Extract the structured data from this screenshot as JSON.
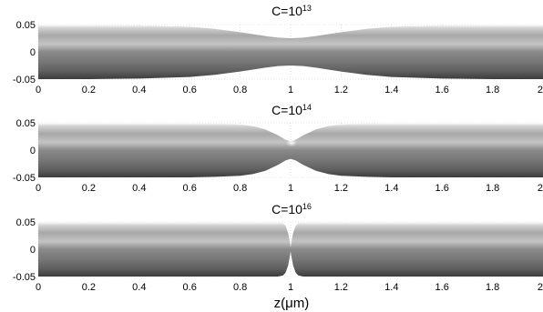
{
  "chart_data": [
    {
      "type": "area",
      "title": {
        "base": "C=10",
        "exponent": "13"
      },
      "x_range": [
        0,
        2
      ],
      "y_range": [
        -0.05,
        0.05
      ],
      "x_ticks": [
        "0",
        "0.2",
        "0.4",
        "0.6",
        "0.8",
        "1",
        "1.2",
        "1.4",
        "1.6",
        "1.8",
        "2"
      ],
      "y_ticks": [
        "0.05",
        "0",
        "-0.05"
      ],
      "radius_profile": {
        "z": [
          0,
          0.2,
          0.4,
          0.6,
          0.7,
          0.8,
          0.9,
          0.95,
          1.0,
          1.05,
          1.1,
          1.2,
          1.3,
          1.4,
          1.6,
          1.8,
          2.0
        ],
        "r": [
          0.05,
          0.05,
          0.049,
          0.046,
          0.042,
          0.036,
          0.029,
          0.026,
          0.025,
          0.026,
          0.029,
          0.036,
          0.042,
          0.046,
          0.049,
          0.05,
          0.05
        ]
      },
      "grid": true
    },
    {
      "type": "area",
      "title": {
        "base": "C=10",
        "exponent": "14"
      },
      "x_range": [
        0,
        2
      ],
      "y_range": [
        -0.05,
        0.05
      ],
      "x_ticks": [
        "0",
        "0.2",
        "0.4",
        "0.6",
        "0.8",
        "1",
        "1.2",
        "1.4",
        "1.6",
        "1.8",
        "2"
      ],
      "y_ticks": [
        "0.05",
        "0",
        "-0.05"
      ],
      "radius_profile": {
        "z": [
          0,
          0.2,
          0.4,
          0.6,
          0.7,
          0.8,
          0.85,
          0.9,
          0.95,
          0.98,
          1.0,
          1.02,
          1.05,
          1.1,
          1.15,
          1.2,
          1.3,
          1.4,
          1.6,
          1.8,
          2.0
        ],
        "r": [
          0.05,
          0.05,
          0.05,
          0.05,
          0.049,
          0.047,
          0.044,
          0.038,
          0.027,
          0.019,
          0.016,
          0.019,
          0.027,
          0.038,
          0.044,
          0.047,
          0.049,
          0.05,
          0.05,
          0.05,
          0.05
        ]
      },
      "grid": true
    },
    {
      "type": "area",
      "title": {
        "base": "C=10",
        "exponent": "16"
      },
      "x_range": [
        0,
        2
      ],
      "y_range": [
        -0.05,
        0.05
      ],
      "x_ticks": [
        "0",
        "0.2",
        "0.4",
        "0.6",
        "0.8",
        "1",
        "1.2",
        "1.4",
        "1.6",
        "1.8",
        "2"
      ],
      "y_ticks": [
        "0.05",
        "0",
        "-0.05"
      ],
      "radius_profile": {
        "z": [
          0,
          0.5,
          0.9,
          0.95,
          0.97,
          0.98,
          0.99,
          0.995,
          1.0,
          1.005,
          1.01,
          1.02,
          1.03,
          1.05,
          1.1,
          1.5,
          2.0
        ],
        "r": [
          0.05,
          0.05,
          0.05,
          0.05,
          0.048,
          0.043,
          0.03,
          0.018,
          0.004,
          0.018,
          0.03,
          0.043,
          0.048,
          0.05,
          0.05,
          0.05,
          0.05
        ]
      },
      "grid": true
    }
  ],
  "xlabel": "z(μm)"
}
